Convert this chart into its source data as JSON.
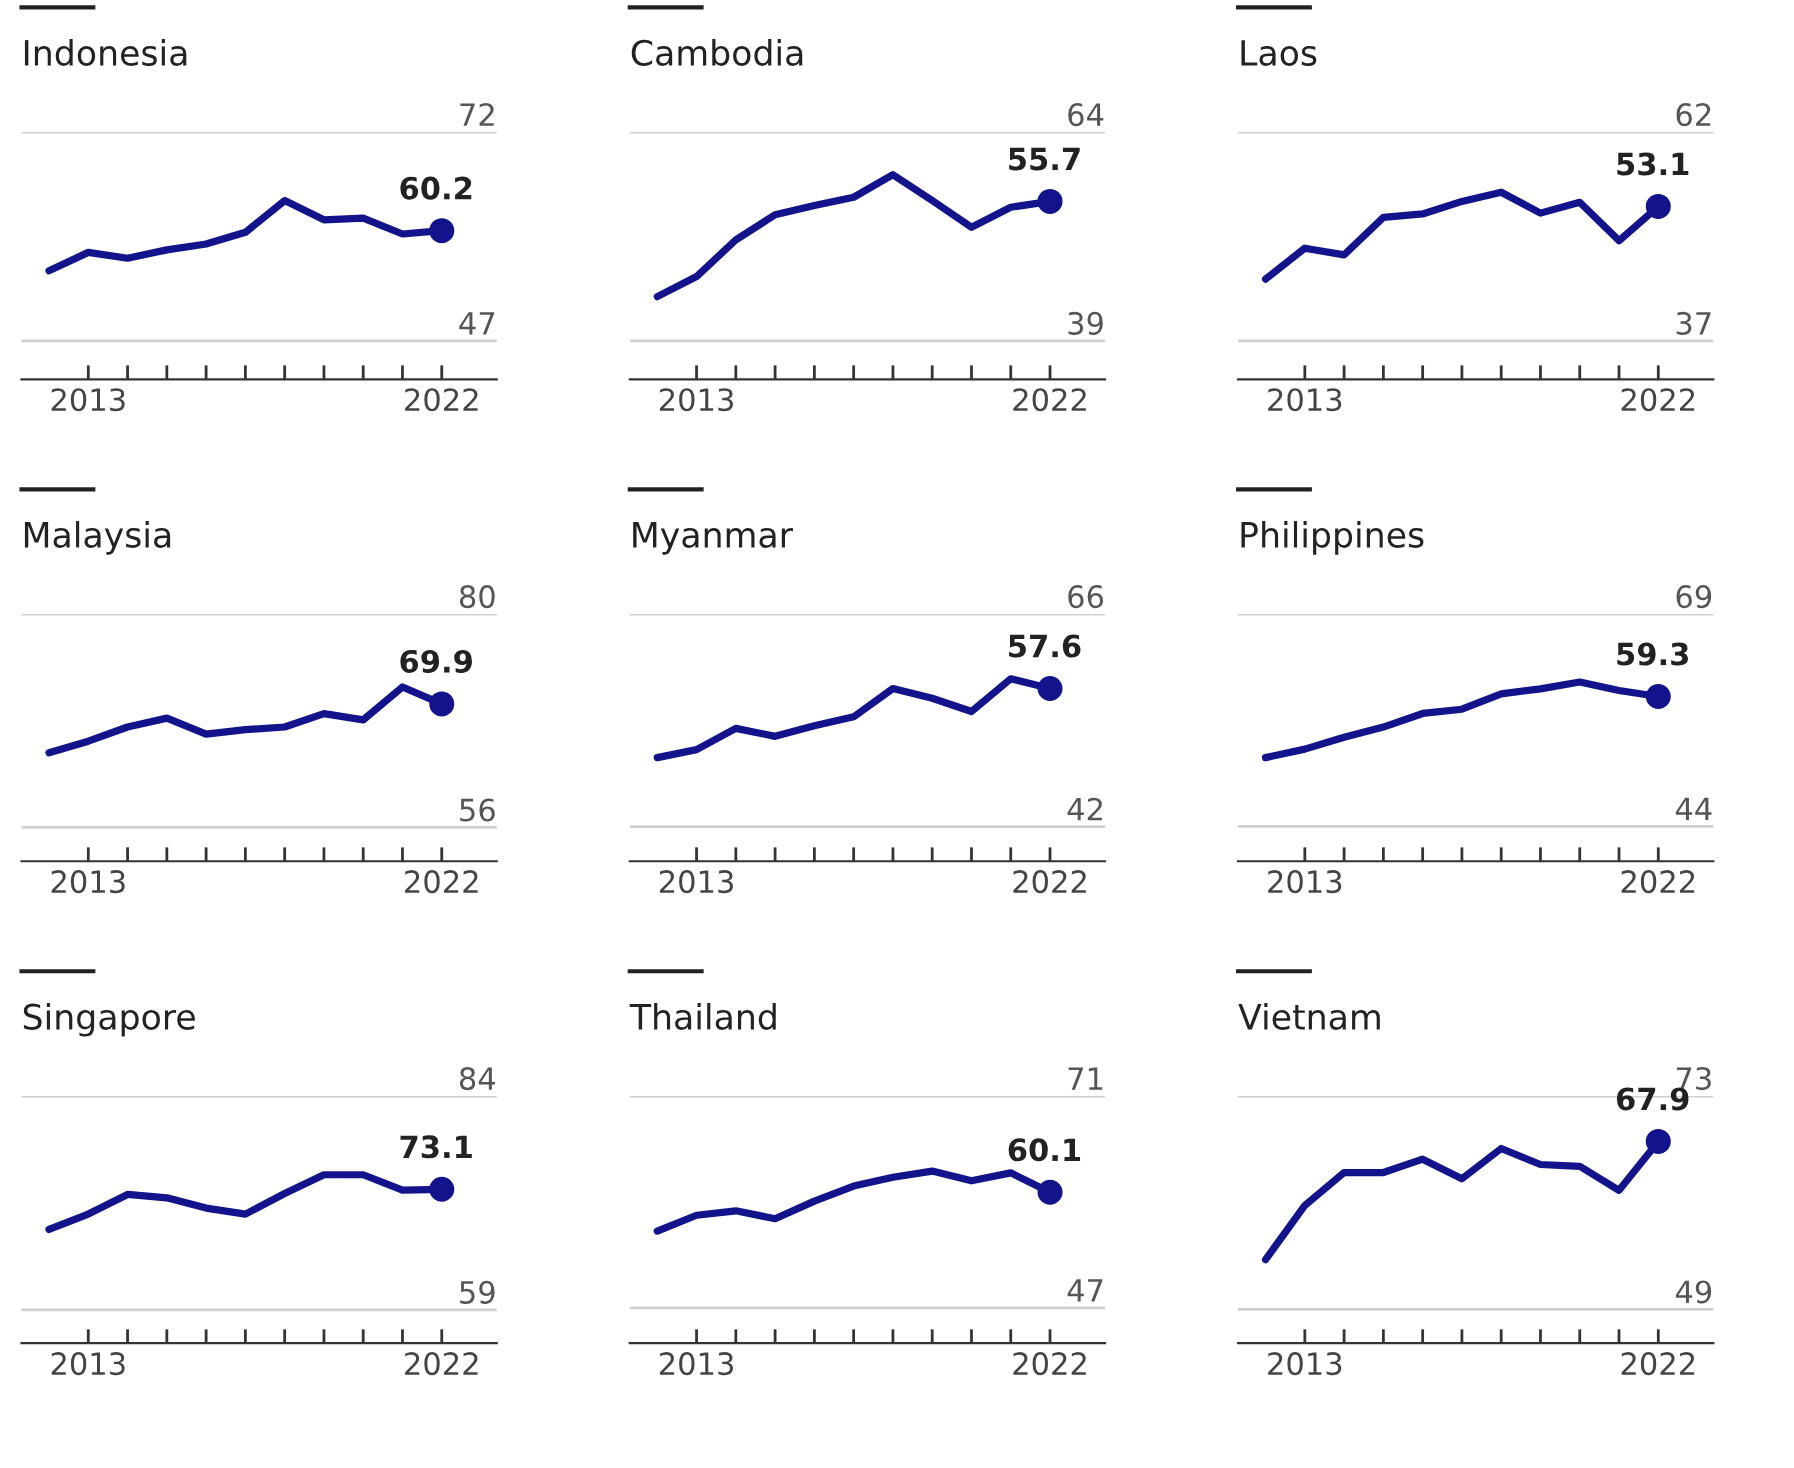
{
  "chart_data": [
    {
      "type": "line",
      "title": "Indonesia",
      "x": [
        2012,
        2013,
        2014,
        2015,
        2016,
        2017,
        2018,
        2019,
        2020,
        2021,
        2022
      ],
      "values": [
        55.4,
        57.6,
        56.9,
        57.9,
        58.6,
        60.0,
        63.8,
        61.5,
        61.7,
        59.8,
        60.2
      ],
      "value_labels": [
        null,
        null,
        null,
        null,
        null,
        null,
        null,
        null,
        null,
        null,
        "60.2"
      ],
      "color": "#13138c",
      "ylim": [
        42.4,
        72
      ],
      "yticks": [
        47,
        72
      ],
      "xlim": [
        2011.3,
        2023.4
      ],
      "xticks": [
        {
          "value": 2013,
          "label": "2013"
        },
        {
          "value": 2014,
          "label": null
        },
        {
          "value": 2015,
          "label": null
        },
        {
          "value": 2016,
          "label": null
        },
        {
          "value": 2017,
          "label": null
        },
        {
          "value": 2018,
          "label": null
        },
        {
          "value": 2019,
          "label": null
        },
        {
          "value": 2020,
          "label": null
        },
        {
          "value": 2021,
          "label": null
        },
        {
          "value": 2022,
          "label": "2022"
        }
      ],
      "grid": "y"
    },
    {
      "type": "line",
      "title": "Cambodia",
      "x": [
        2012,
        2013,
        2014,
        2015,
        2016,
        2017,
        2018,
        2019,
        2020,
        2021,
        2022
      ],
      "values": [
        44.3,
        46.7,
        51.1,
        54.1,
        55.2,
        56.2,
        58.9,
        55.8,
        52.6,
        55.0,
        55.7
      ],
      "value_labels": [
        null,
        null,
        null,
        null,
        null,
        null,
        null,
        null,
        null,
        null,
        "55.7"
      ],
      "color": "#13138c",
      "ylim": [
        34.4,
        64
      ],
      "yticks": [
        39,
        64
      ],
      "xlim": [
        2011.3,
        2023.4
      ],
      "xticks": [
        {
          "value": 2013,
          "label": "2013"
        },
        {
          "value": 2014,
          "label": null
        },
        {
          "value": 2015,
          "label": null
        },
        {
          "value": 2016,
          "label": null
        },
        {
          "value": 2017,
          "label": null
        },
        {
          "value": 2018,
          "label": null
        },
        {
          "value": 2019,
          "label": null
        },
        {
          "value": 2020,
          "label": null
        },
        {
          "value": 2021,
          "label": null
        },
        {
          "value": 2022,
          "label": "2022"
        }
      ],
      "grid": "y"
    },
    {
      "type": "line",
      "title": "Laos",
      "x": [
        2012,
        2013,
        2014,
        2015,
        2016,
        2017,
        2018,
        2019,
        2020,
        2021,
        2022
      ],
      "values": [
        44.4,
        48.1,
        47.3,
        51.8,
        52.2,
        53.7,
        54.8,
        52.3,
        53.6,
        49.0,
        53.1
      ],
      "value_labels": [
        null,
        null,
        null,
        null,
        null,
        null,
        null,
        null,
        null,
        null,
        "53.1"
      ],
      "color": "#13138c",
      "ylim": [
        32.4,
        62
      ],
      "yticks": [
        37,
        62
      ],
      "xlim": [
        2011.3,
        2023.4
      ],
      "xticks": [
        {
          "value": 2013,
          "label": "2013"
        },
        {
          "value": 2014,
          "label": null
        },
        {
          "value": 2015,
          "label": null
        },
        {
          "value": 2016,
          "label": null
        },
        {
          "value": 2017,
          "label": null
        },
        {
          "value": 2018,
          "label": null
        },
        {
          "value": 2019,
          "label": null
        },
        {
          "value": 2020,
          "label": null
        },
        {
          "value": 2021,
          "label": null
        },
        {
          "value": 2022,
          "label": "2022"
        }
      ],
      "grid": "y"
    },
    {
      "type": "line",
      "title": "Malaysia",
      "x": [
        2012,
        2013,
        2014,
        2015,
        2016,
        2017,
        2018,
        2019,
        2020,
        2021,
        2022
      ],
      "values": [
        64.4,
        65.7,
        67.3,
        68.3,
        66.5,
        67.0,
        67.3,
        68.8,
        68.1,
        71.8,
        69.9
      ],
      "value_labels": [
        null,
        null,
        null,
        null,
        null,
        null,
        null,
        null,
        null,
        null,
        "69.9"
      ],
      "color": "#13138c",
      "ylim": [
        52.2,
        80
      ],
      "yticks": [
        56,
        80
      ],
      "xlim": [
        2011.3,
        2023.4
      ],
      "xticks": [
        {
          "value": 2013,
          "label": "2013"
        },
        {
          "value": 2014,
          "label": null
        },
        {
          "value": 2015,
          "label": null
        },
        {
          "value": 2016,
          "label": null
        },
        {
          "value": 2017,
          "label": null
        },
        {
          "value": 2018,
          "label": null
        },
        {
          "value": 2019,
          "label": null
        },
        {
          "value": 2020,
          "label": null
        },
        {
          "value": 2021,
          "label": null
        },
        {
          "value": 2022,
          "label": "2022"
        }
      ],
      "grid": "y"
    },
    {
      "type": "line",
      "title": "Myanmar",
      "x": [
        2012,
        2013,
        2014,
        2015,
        2016,
        2017,
        2018,
        2019,
        2020,
        2021,
        2022
      ],
      "values": [
        49.8,
        50.7,
        53.1,
        52.2,
        53.4,
        54.4,
        57.6,
        56.5,
        55.0,
        58.7,
        57.6
      ],
      "value_labels": [
        null,
        null,
        null,
        null,
        null,
        null,
        null,
        null,
        null,
        null,
        "57.6"
      ],
      "color": "#13138c",
      "ylim": [
        38.1,
        66
      ],
      "yticks": [
        42,
        66
      ],
      "xlim": [
        2011.3,
        2023.4
      ],
      "xticks": [
        {
          "value": 2013,
          "label": "2013"
        },
        {
          "value": 2014,
          "label": null
        },
        {
          "value": 2015,
          "label": null
        },
        {
          "value": 2016,
          "label": null
        },
        {
          "value": 2017,
          "label": null
        },
        {
          "value": 2018,
          "label": null
        },
        {
          "value": 2019,
          "label": null
        },
        {
          "value": 2020,
          "label": null
        },
        {
          "value": 2021,
          "label": null
        },
        {
          "value": 2022,
          "label": "2022"
        }
      ],
      "grid": "y"
    },
    {
      "type": "line",
      "title": "Philippines",
      "x": [
        2012,
        2013,
        2014,
        2015,
        2016,
        2017,
        2018,
        2019,
        2020,
        2021,
        2022
      ],
      "values": [
        52.1,
        53.1,
        54.5,
        55.7,
        57.3,
        57.8,
        59.6,
        60.2,
        61.0,
        60.0,
        59.3
      ],
      "value_labels": [
        null,
        null,
        null,
        null,
        null,
        null,
        null,
        null,
        null,
        null,
        "59.3"
      ],
      "color": "#13138c",
      "ylim": [
        39.9,
        69
      ],
      "yticks": [
        44,
        69
      ],
      "xlim": [
        2011.3,
        2023.4
      ],
      "xticks": [
        {
          "value": 2013,
          "label": "2013"
        },
        {
          "value": 2014,
          "label": null
        },
        {
          "value": 2015,
          "label": null
        },
        {
          "value": 2016,
          "label": null
        },
        {
          "value": 2017,
          "label": null
        },
        {
          "value": 2018,
          "label": null
        },
        {
          "value": 2019,
          "label": null
        },
        {
          "value": 2020,
          "label": null
        },
        {
          "value": 2021,
          "label": null
        },
        {
          "value": 2022,
          "label": "2022"
        }
      ],
      "grid": "y"
    },
    {
      "type": "line",
      "title": "Singapore",
      "x": [
        2012,
        2013,
        2014,
        2015,
        2016,
        2017,
        2018,
        2019,
        2020,
        2021,
        2022
      ],
      "values": [
        68.4,
        70.2,
        72.5,
        72.1,
        70.9,
        70.2,
        72.6,
        74.8,
        74.8,
        73.0,
        73.1
      ],
      "value_labels": [
        null,
        null,
        null,
        null,
        null,
        null,
        null,
        null,
        null,
        null,
        "73.1"
      ],
      "color": "#13138c",
      "ylim": [
        55.1,
        84
      ],
      "yticks": [
        59,
        84
      ],
      "xlim": [
        2011.3,
        2023.4
      ],
      "xticks": [
        {
          "value": 2013,
          "label": "2013"
        },
        {
          "value": 2014,
          "label": null
        },
        {
          "value": 2015,
          "label": null
        },
        {
          "value": 2016,
          "label": null
        },
        {
          "value": 2017,
          "label": null
        },
        {
          "value": 2018,
          "label": null
        },
        {
          "value": 2019,
          "label": null
        },
        {
          "value": 2020,
          "label": null
        },
        {
          "value": 2021,
          "label": null
        },
        {
          "value": 2022,
          "label": "2022"
        }
      ],
      "grid": "y"
    },
    {
      "type": "line",
      "title": "Thailand",
      "x": [
        2012,
        2013,
        2014,
        2015,
        2016,
        2017,
        2018,
        2019,
        2020,
        2021,
        2022
      ],
      "values": [
        55.7,
        57.5,
        58.0,
        57.1,
        59.1,
        60.8,
        61.8,
        62.5,
        61.4,
        62.3,
        60.1
      ],
      "value_labels": [
        null,
        null,
        null,
        null,
        null,
        null,
        null,
        null,
        null,
        null,
        "60.1"
      ],
      "color": "#13138c",
      "ylim": [
        43,
        71
      ],
      "yticks": [
        47,
        71
      ],
      "xlim": [
        2011.3,
        2023.4
      ],
      "xticks": [
        {
          "value": 2013,
          "label": "2013"
        },
        {
          "value": 2014,
          "label": null
        },
        {
          "value": 2015,
          "label": null
        },
        {
          "value": 2016,
          "label": null
        },
        {
          "value": 2017,
          "label": null
        },
        {
          "value": 2018,
          "label": null
        },
        {
          "value": 2019,
          "label": null
        },
        {
          "value": 2020,
          "label": null
        },
        {
          "value": 2021,
          "label": null
        },
        {
          "value": 2022,
          "label": "2022"
        }
      ],
      "grid": "y"
    },
    {
      "type": "line",
      "title": "Vietnam",
      "x": [
        2012,
        2013,
        2014,
        2015,
        2016,
        2017,
        2018,
        2019,
        2020,
        2021,
        2022
      ],
      "values": [
        54.6,
        60.7,
        64.4,
        64.4,
        65.9,
        63.7,
        67.1,
        65.3,
        65.1,
        62.4,
        67.9
      ],
      "value_labels": [
        null,
        null,
        null,
        null,
        null,
        null,
        null,
        null,
        null,
        null,
        "67.9"
      ],
      "color": "#13138c",
      "ylim": [
        45.2,
        73
      ],
      "yticks": [
        49,
        73
      ],
      "xlim": [
        2011.3,
        2023.4
      ],
      "xticks": [
        {
          "value": 2013,
          "label": "2013"
        },
        {
          "value": 2014,
          "label": null
        },
        {
          "value": 2015,
          "label": null
        },
        {
          "value": 2016,
          "label": null
        },
        {
          "value": 2017,
          "label": null
        },
        {
          "value": 2018,
          "label": null
        },
        {
          "value": 2019,
          "label": null
        },
        {
          "value": 2020,
          "label": null
        },
        {
          "value": 2021,
          "label": null
        },
        {
          "value": 2022,
          "label": "2022"
        }
      ],
      "grid": "y"
    }
  ]
}
